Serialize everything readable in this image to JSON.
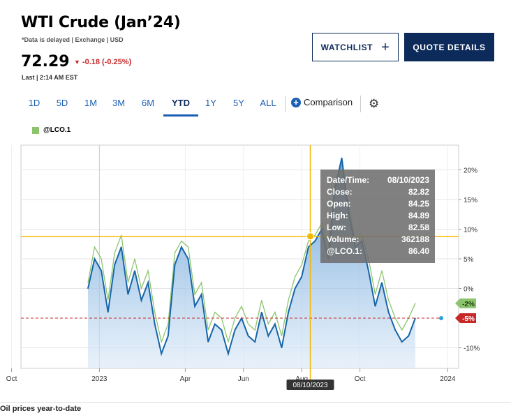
{
  "header": {
    "title": "WTI Crude (Jan’24)",
    "meta": "*Data is delayed | Exchange | USD",
    "price": "72.29",
    "change": "-0.18 (-0.25%)",
    "last": "Last | 2:14 AM EST"
  },
  "buttons": {
    "watchlist": "WATCHLIST",
    "quote": "QUOTE DETAILS"
  },
  "tabs": [
    "1D",
    "5D",
    "1M",
    "3M",
    "6M",
    "YTD",
    "1Y",
    "5Y",
    "ALL"
  ],
  "active_tab": "YTD",
  "comparison_label": "Comparison",
  "legend_label": "@LCO.1",
  "tooltip": {
    "rows": [
      {
        "label": "Date/Time:",
        "value": "08/10/2023"
      },
      {
        "label": "Close:",
        "value": "82.82"
      },
      {
        "label": "Open:",
        "value": "84.25"
      },
      {
        "label": "High:",
        "value": "84.89"
      },
      {
        "label": "Low:",
        "value": "82.58"
      },
      {
        "label": "Volume:",
        "value": "362188"
      },
      {
        "label": "@LCO.1:",
        "value": "86.40"
      }
    ]
  },
  "caption": "Oil prices year-to-date",
  "colors": {
    "main_line": "#1565a8",
    "compare_line": "#8cc46e",
    "crosshair": "#f5b800",
    "badge_red": "#c62828",
    "badge_green": "#8cc46e",
    "navy": "#0c2b5a"
  },
  "chart_data": {
    "type": "area",
    "x_tick_labels": [
      "Oct",
      "2023",
      "Apr",
      "Jun",
      "Aug",
      "Oct",
      "2024"
    ],
    "y_tick_labels": [
      "20%",
      "15%",
      "10%",
      "5%",
      "0%",
      "-10%"
    ],
    "y_ticks": [
      20,
      15,
      10,
      5,
      0,
      -10
    ],
    "ylim": [
      -13.5,
      24
    ],
    "crosshair_date": "08/10/2023",
    "crosshair_value": 8.8,
    "badges": [
      {
        "label": "-2%",
        "value": -2.5,
        "series": "@LCO.1"
      },
      {
        "label": "-5%",
        "value": -5,
        "series": "WTI Crude (Jan’24)"
      }
    ],
    "grid": true,
    "series": [
      {
        "name": "WTI Crude (Jan’24)",
        "x_start": "2022-12-20",
        "step_days": 7,
        "values": [
          0,
          5,
          3,
          -4,
          4,
          7,
          -1,
          3,
          -2,
          1,
          -6,
          -11,
          -8,
          4,
          7,
          5,
          -3,
          -1,
          -9,
          -6,
          -7,
          -11,
          -7,
          -5,
          -8,
          -9,
          -4,
          -8,
          -6,
          -10,
          -4,
          0,
          2,
          7,
          8,
          10,
          5,
          17,
          22,
          13,
          7,
          8,
          3,
          -3,
          1,
          -4,
          -7,
          -9,
          -8,
          -5
        ]
      },
      {
        "name": "@LCO.1",
        "x_start": "2022-12-20",
        "step_days": 7,
        "values": [
          1,
          7,
          5,
          -2,
          6,
          9,
          1,
          5,
          0,
          3,
          -4,
          -9,
          -6,
          6,
          8,
          7,
          -1,
          1,
          -7,
          -4,
          -5,
          -9,
          -5,
          -3,
          -6,
          -7,
          -2,
          -6,
          -4,
          -8,
          -2,
          2,
          4,
          8,
          9,
          11,
          7,
          18,
          20,
          14,
          8,
          9,
          5,
          -1,
          3,
          -2,
          -5,
          -7,
          -5,
          -2.5
        ]
      }
    ]
  }
}
